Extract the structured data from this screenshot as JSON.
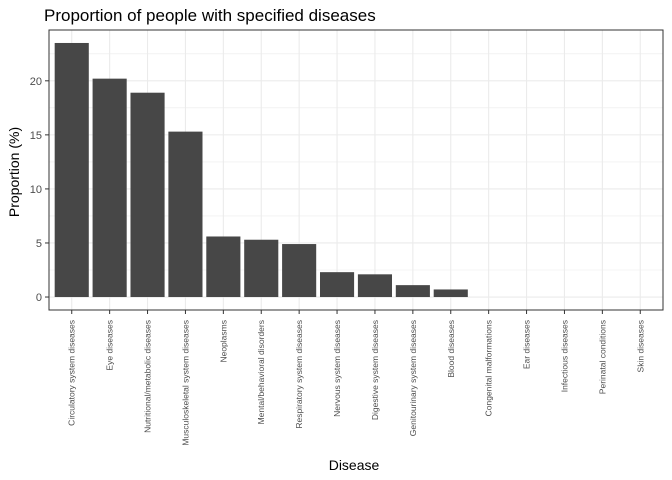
{
  "chart_data": {
    "type": "bar",
    "title": "Proportion of people with specified diseases",
    "xlabel": "Disease",
    "ylabel": "Proportion (%)",
    "categories": [
      "Circulatory system diseases",
      "Eye diseases",
      "Nutritional/metabolic diseases",
      "Musculoskeletal system diseases",
      "Neoplasms",
      "Mental/behavioral disorders",
      "Respiratory system diseases",
      "Nervous system diseases",
      "Digestive system diseases",
      "Genitourinary system diseases",
      "Blood diseases",
      "Congenital malformations",
      "Ear diseases",
      "Infectious diseases",
      "Perinatal conditions",
      "Skin diseases"
    ],
    "values": [
      23.5,
      20.2,
      18.9,
      15.3,
      5.6,
      5.3,
      4.9,
      2.3,
      2.1,
      1.1,
      0.7,
      0,
      0,
      0,
      0,
      0
    ],
    "yticks": [
      0,
      5,
      10,
      15,
      20
    ],
    "ylim": [
      -1.2,
      24.7
    ],
    "grid": true,
    "bar_color": "#474747",
    "grid_color": "#ebebeb",
    "panel_border_color": "#333333",
    "legend": "none"
  }
}
